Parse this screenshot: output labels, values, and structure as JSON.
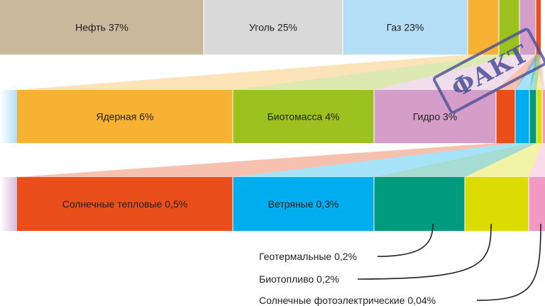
{
  "chart_data": {
    "type": "bar",
    "subtype": "stacked-horizontal-breakdown",
    "stamp": "ФАКТ",
    "rows": [
      {
        "name": "all",
        "segments": [
          {
            "label": "Нефть 37%",
            "value": 37,
            "color": "#c9b99a"
          },
          {
            "label": "Уголь 25%",
            "value": 25,
            "color": "#d9d9d9"
          },
          {
            "label": "Газ 23%",
            "value": 23,
            "color": "#b3def5"
          },
          {
            "label": "",
            "value": 6,
            "color": "#f7b133"
          },
          {
            "label": "",
            "value": 4,
            "color": "#9bc21f"
          },
          {
            "label": "",
            "value": 3,
            "color": "#d49ec9"
          },
          {
            "label": "",
            "value": 1.24,
            "color": "#e94e1b"
          }
        ]
      },
      {
        "name": "mid",
        "segments": [
          {
            "label": "Ядерная 6%",
            "value": 6,
            "color": "#f7b133"
          },
          {
            "label": "Биотомасса 4%",
            "value": 4,
            "color": "#9bc21f"
          },
          {
            "label": "Гидро 3%",
            "value": 3,
            "color": "#d49ec9"
          },
          {
            "label": "",
            "value": 0.5,
            "color": "#e94e1b"
          },
          {
            "label": "",
            "value": 0.3,
            "color": "#00aeef"
          },
          {
            "label": "",
            "value": 0.2,
            "color": "#009a7e"
          },
          {
            "label": "",
            "value": 0.2,
            "color": "#dcdc00"
          },
          {
            "label": "",
            "value": 0.04,
            "color": "#f39ac2"
          }
        ]
      },
      {
        "name": "small",
        "segments": [
          {
            "label": "Солнечные тепловые 0,5%",
            "value": 0.5,
            "color": "#e94e1b"
          },
          {
            "label": "Ветряные 0,3%",
            "value": 0.3,
            "color": "#00aeef"
          },
          {
            "label": "",
            "value": 0.2,
            "color": "#009a7e"
          },
          {
            "label": "",
            "value": 0.2,
            "color": "#dcdc00"
          },
          {
            "label": "",
            "value": 0.04,
            "color": "#f39ac2"
          }
        ]
      }
    ],
    "callouts": [
      "Геотермальные 0,2%",
      "Биотопливо 0,2%",
      "Солнечные фотоэлектрические 0,04%"
    ]
  }
}
